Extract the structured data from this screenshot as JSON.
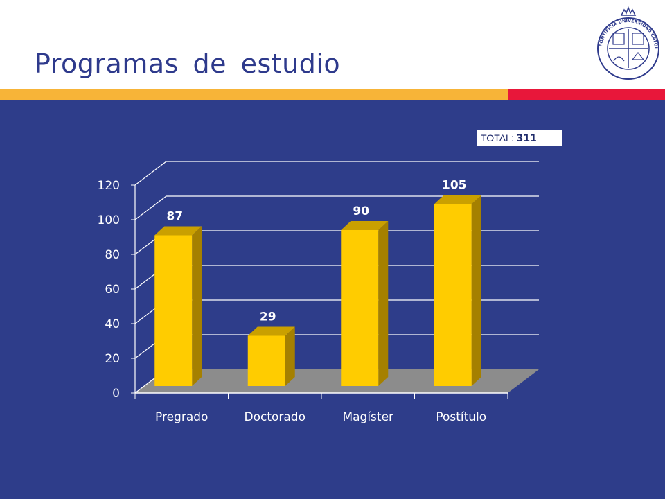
{
  "slide": {
    "title": "Programas de estudio",
    "total_label": "TOTAL:",
    "total_value": "311",
    "logo_icon": "pontificia-universidad-catolica-de-chile-seal-icon",
    "logo_text": "PONTIFICIA UNIVERSIDAD CATÓLICA DE CHILE"
  },
  "colors": {
    "title": "#2e3a8c",
    "panel": "#2e3d8a",
    "stripe_orange": "#f7b438",
    "stripe_red": "#e8173a",
    "bar_front": "#ffcc00",
    "bar_side": "#a58000",
    "bar_top": "#caa000",
    "floor": "#8c8c8c"
  },
  "chart_data": {
    "type": "bar",
    "style": "3d",
    "categories": [
      "Pregrado",
      "Doctorado",
      "Magíster",
      "Postítulo"
    ],
    "values": [
      87,
      29,
      90,
      105
    ],
    "data_labels": [
      "87",
      "29",
      "90",
      "105"
    ],
    "y_ticks": [
      "0",
      "20",
      "40",
      "60",
      "80",
      "100",
      "120"
    ],
    "ylim": [
      0,
      120
    ],
    "grid": true,
    "legend": false,
    "title": "",
    "xlabel": "",
    "ylabel": ""
  }
}
